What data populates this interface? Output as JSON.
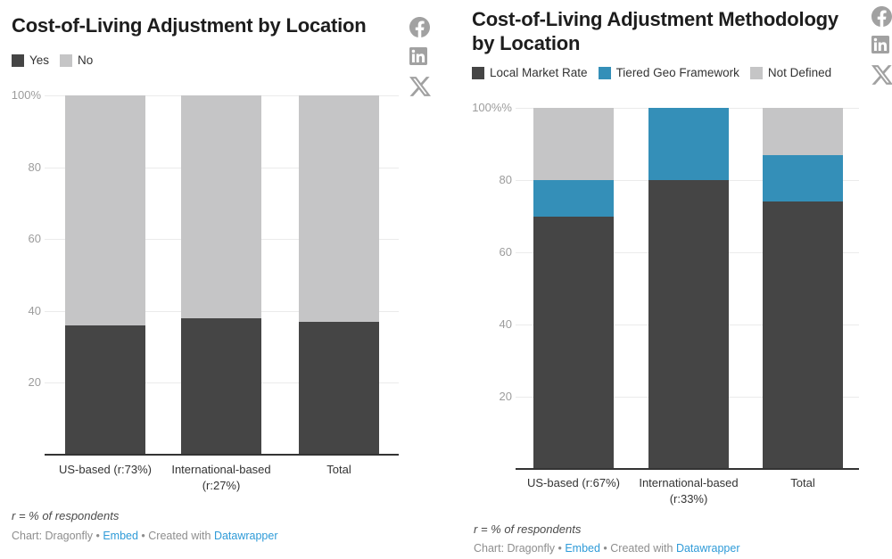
{
  "colors": {
    "dark": "#454545",
    "blue": "#348fb8",
    "light_gray": "#c5c5c6",
    "grid": "#ebebeb",
    "axis_line": "#333333",
    "tick_text": "#9c9c9c",
    "label_text": "#333333",
    "title_text": "#1d1d1d",
    "note_text": "#4a4a4a",
    "attribution_text": "#8e8e8e",
    "link_blue": "#2f9bd8",
    "icon_gray": "#a1a1a1"
  },
  "footer": {
    "note": "r = % of respondents",
    "attribution": {
      "chart_credit": "Chart: Dragonfly",
      "separator": "•",
      "embed_label": "Embed",
      "created_with": "Created with",
      "tool": "Datawrapper"
    }
  },
  "social": {
    "icons": [
      "facebook",
      "linkedin",
      "x"
    ]
  },
  "chart_data": [
    {
      "type": "bar",
      "stacked": true,
      "orientation": "vertical",
      "title": "Cost-of-Living Adjustment by Location",
      "title_lines": [
        "Cost-of-Living Adjustment by Location"
      ],
      "categories": [
        "US-based (r:73%)",
        "International-based (r:27%)",
        "Total"
      ],
      "series": [
        {
          "name": "Yes",
          "color": "#454545",
          "values": [
            36,
            38,
            37
          ]
        },
        {
          "name": "No",
          "color": "#c5c5c6",
          "values": [
            64,
            62,
            63
          ]
        }
      ],
      "ylim": [
        0,
        100
      ],
      "y_tick_labels": [
        "100%",
        "80",
        "60",
        "40",
        "20"
      ],
      "grid": true,
      "legend_position": "top-left",
      "note": "r = % of respondents"
    },
    {
      "type": "bar",
      "stacked": true,
      "orientation": "vertical",
      "title": "Cost-of-Living Adjustment Methodology by Location",
      "title_lines": [
        "Cost-of-Living Adjustment Methodology",
        "by Location"
      ],
      "categories": [
        "US-based (r:67%)",
        "International-based (r:33%)",
        "Total"
      ],
      "series": [
        {
          "name": "Local Market Rate",
          "color": "#454545",
          "values": [
            70,
            80,
            74
          ]
        },
        {
          "name": "Tiered Geo Framework",
          "color": "#348fb8",
          "values": [
            10,
            20,
            13
          ]
        },
        {
          "name": "Not Defined",
          "color": "#c5c5c6",
          "values": [
            20,
            0,
            13
          ]
        }
      ],
      "ylim": [
        0,
        100
      ],
      "y_tick_labels": [
        "100%%",
        "80",
        "60",
        "40",
        "20"
      ],
      "grid": true,
      "legend_position": "top-left",
      "note": "r = % of respondents"
    }
  ]
}
